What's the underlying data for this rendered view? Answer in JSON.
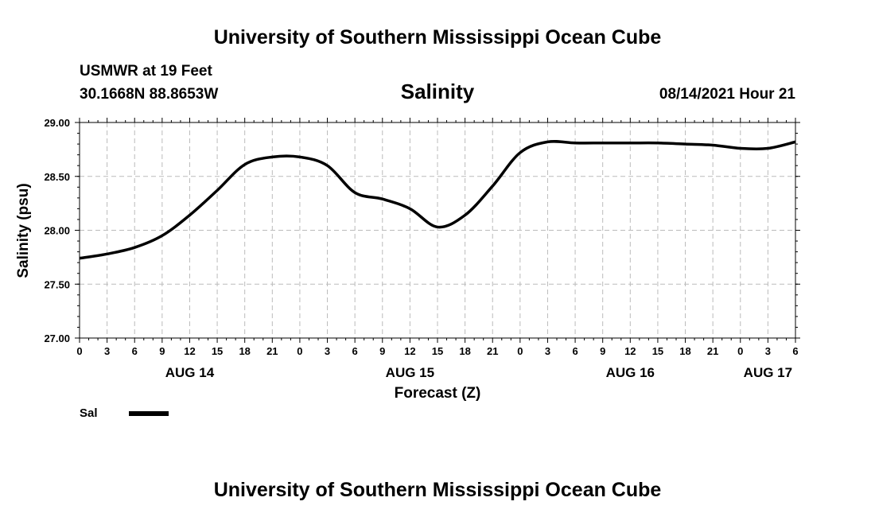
{
  "header": {
    "title_top": "University of Southern Mississippi Ocean Cube",
    "station": "USMWR at 19 Feet",
    "coords": "30.1668N  88.8653W",
    "variable": "Salinity",
    "datetime": "08/14/2021 Hour 21"
  },
  "footer": {
    "title_bottom": "University of Southern Mississippi Ocean Cube"
  },
  "legend": {
    "label": "Sal",
    "color": "#000000"
  },
  "chart_data": {
    "type": "line",
    "title": "Salinity",
    "xlabel": "Forecast (Z)",
    "ylabel": "Salinity (psu)",
    "ylim": [
      27.0,
      29.0
    ],
    "xlim_hours": [
      0,
      78
    ],
    "y_ticks": [
      "27.00",
      "27.50",
      "28.00",
      "28.50",
      "29.00"
    ],
    "x_tick_step_hours": 3,
    "x_tick_labels": [
      "0",
      "3",
      "6",
      "9",
      "12",
      "15",
      "18",
      "21",
      "0",
      "3",
      "6",
      "9",
      "12",
      "15",
      "18",
      "21",
      "0",
      "3",
      "6",
      "9",
      "12",
      "15",
      "18",
      "21",
      "0",
      "3",
      "6"
    ],
    "day_labels": [
      {
        "label": "AUG 14",
        "hour": 12
      },
      {
        "label": "AUG 15",
        "hour": 36
      },
      {
        "label": "AUG 16",
        "hour": 60
      },
      {
        "label": "AUG 17",
        "hour": 75
      }
    ],
    "grid": true,
    "series": [
      {
        "name": "Sal",
        "x": [
          0,
          3,
          6,
          9,
          12,
          15,
          18,
          21,
          24,
          27,
          30,
          33,
          36,
          39,
          42,
          45,
          48,
          51,
          54,
          57,
          60,
          63,
          66,
          69,
          72,
          75,
          78
        ],
        "values": [
          27.74,
          27.78,
          27.84,
          27.95,
          28.14,
          28.37,
          28.61,
          28.68,
          28.68,
          28.6,
          28.35,
          28.29,
          28.2,
          28.03,
          28.14,
          28.41,
          28.72,
          28.82,
          28.81,
          28.81,
          28.81,
          28.81,
          28.8,
          28.79,
          28.76,
          28.76,
          28.82
        ]
      }
    ]
  }
}
